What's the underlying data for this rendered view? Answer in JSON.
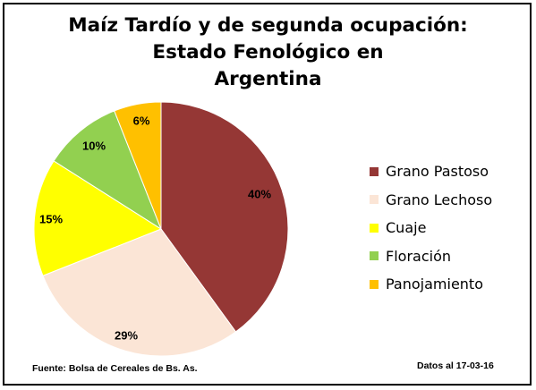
{
  "chart_data": {
    "type": "pie",
    "title_lines": [
      "Maíz Tardío y de segunda ocupación:",
      "Estado Fenológico en",
      "Argentina"
    ],
    "slices": [
      {
        "name": "Grano Pastoso",
        "value": 40,
        "label": "40%",
        "color": "#953735"
      },
      {
        "name": "Grano Lechoso",
        "value": 29,
        "label": "29%",
        "color": "#FBE5D6"
      },
      {
        "name": "Cuaje",
        "value": 15,
        "label": "15%",
        "color": "#FFFF00"
      },
      {
        "name": "Floración",
        "value": 10,
        "label": "10%",
        "color": "#92D050"
      },
      {
        "name": "Panojamiento",
        "value": 6,
        "label": "6%",
        "color": "#FFC000"
      }
    ],
    "legend_position": "right",
    "source": "Fuente: Bolsa de Cereales de Bs. As.",
    "date_note": "Datos al 17-03-16"
  }
}
